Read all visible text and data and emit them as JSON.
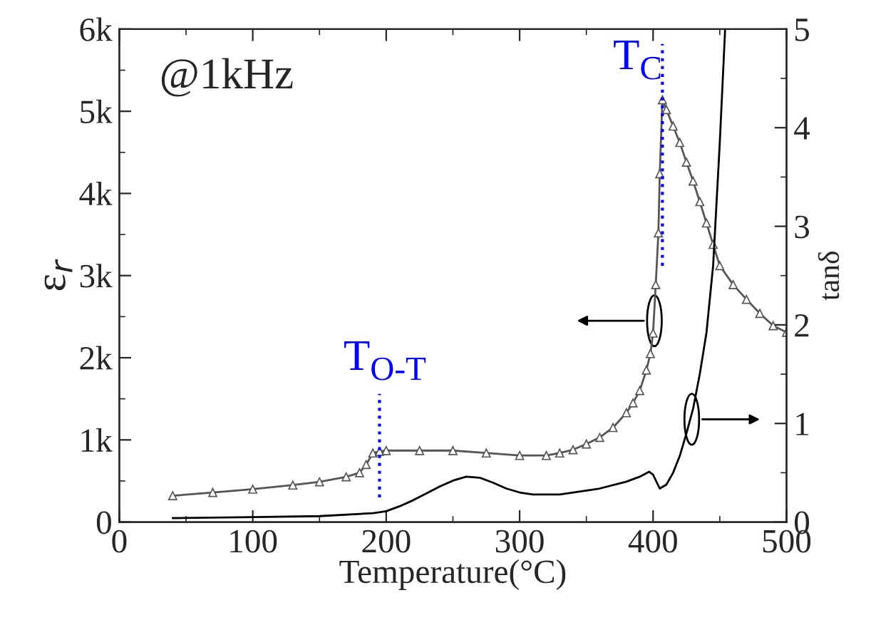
{
  "chart_data": {
    "type": "line",
    "xlabel": "Temperature(°C)",
    "ylabel": "ε$_{r}$",
    "y2label": "tanδ",
    "xlim": [
      0,
      500
    ],
    "xticks": [
      0,
      100,
      200,
      300,
      400,
      500
    ],
    "ylim": [
      0,
      6000
    ],
    "yticks": [
      0,
      {
        "value": 1000,
        "label": "1k"
      },
      {
        "value": 2000,
        "label": "2k"
      },
      {
        "value": 3000,
        "label": "3k"
      },
      {
        "value": 4000,
        "label": "4k"
      },
      {
        "value": 5000,
        "label": "5k"
      },
      {
        "value": 6000,
        "label": "6k"
      }
    ],
    "y2lim": [
      0,
      5
    ],
    "y2ticks": [
      0,
      1,
      2,
      3,
      4,
      5
    ],
    "grid": false,
    "series": [
      {
        "color": "#555555",
        "marker": "triangle",
        "line_style": "solid",
        "x": [
          40,
          70,
          100,
          130,
          150,
          170,
          180,
          185,
          190,
          195,
          200,
          225,
          250,
          275,
          300,
          320,
          330,
          340,
          350,
          360,
          370,
          380,
          385,
          390,
          395,
          398,
          400,
          402,
          404,
          405,
          407,
          410,
          415,
          420,
          425,
          430,
          435,
          440,
          445,
          450,
          460,
          470,
          480,
          490,
          500
        ],
        "values": [
          320,
          360,
          400,
          450,
          490,
          550,
          600,
          700,
          840,
          860,
          870,
          870,
          870,
          840,
          810,
          810,
          840,
          880,
          950,
          1030,
          1150,
          1330,
          1450,
          1600,
          1850,
          2050,
          2300,
          2890,
          3520,
          4240,
          5140,
          5020,
          4820,
          4620,
          4380,
          4150,
          3900,
          3640,
          3380,
          3120,
          2890,
          2710,
          2540,
          2390,
          2310
        ]
      },
      {
        "color": "#000000",
        "marker": "none",
        "line_style": "solid",
        "axis": "y2",
        "x": [
          40,
          100,
          150,
          190,
          200,
          210,
          220,
          230,
          240,
          250,
          260,
          270,
          280,
          290,
          300,
          310,
          330,
          360,
          380,
          390,
          397,
          400,
          405,
          410,
          415,
          420,
          425,
          430,
          435,
          440,
          445,
          450,
          454
        ],
        "values": [
          0.04,
          0.05,
          0.06,
          0.09,
          0.11,
          0.16,
          0.22,
          0.29,
          0.36,
          0.42,
          0.46,
          0.45,
          0.4,
          0.34,
          0.3,
          0.28,
          0.28,
          0.34,
          0.41,
          0.46,
          0.51,
          0.48,
          0.34,
          0.38,
          0.5,
          0.67,
          0.9,
          1.15,
          1.5,
          1.92,
          2.6,
          3.85,
          5.0
        ]
      }
    ],
    "ref_lines": [
      {
        "axis": "x",
        "value": 195,
        "label": "T$_{O-T}$",
        "color": "#0000ff",
        "line_style": "dotted"
      },
      {
        "axis": "x",
        "value": 407,
        "label": "T$_{C}$",
        "color": "#0000ff",
        "line_style": "dotted"
      }
    ],
    "annotations": [
      "@1kHz"
    ]
  }
}
